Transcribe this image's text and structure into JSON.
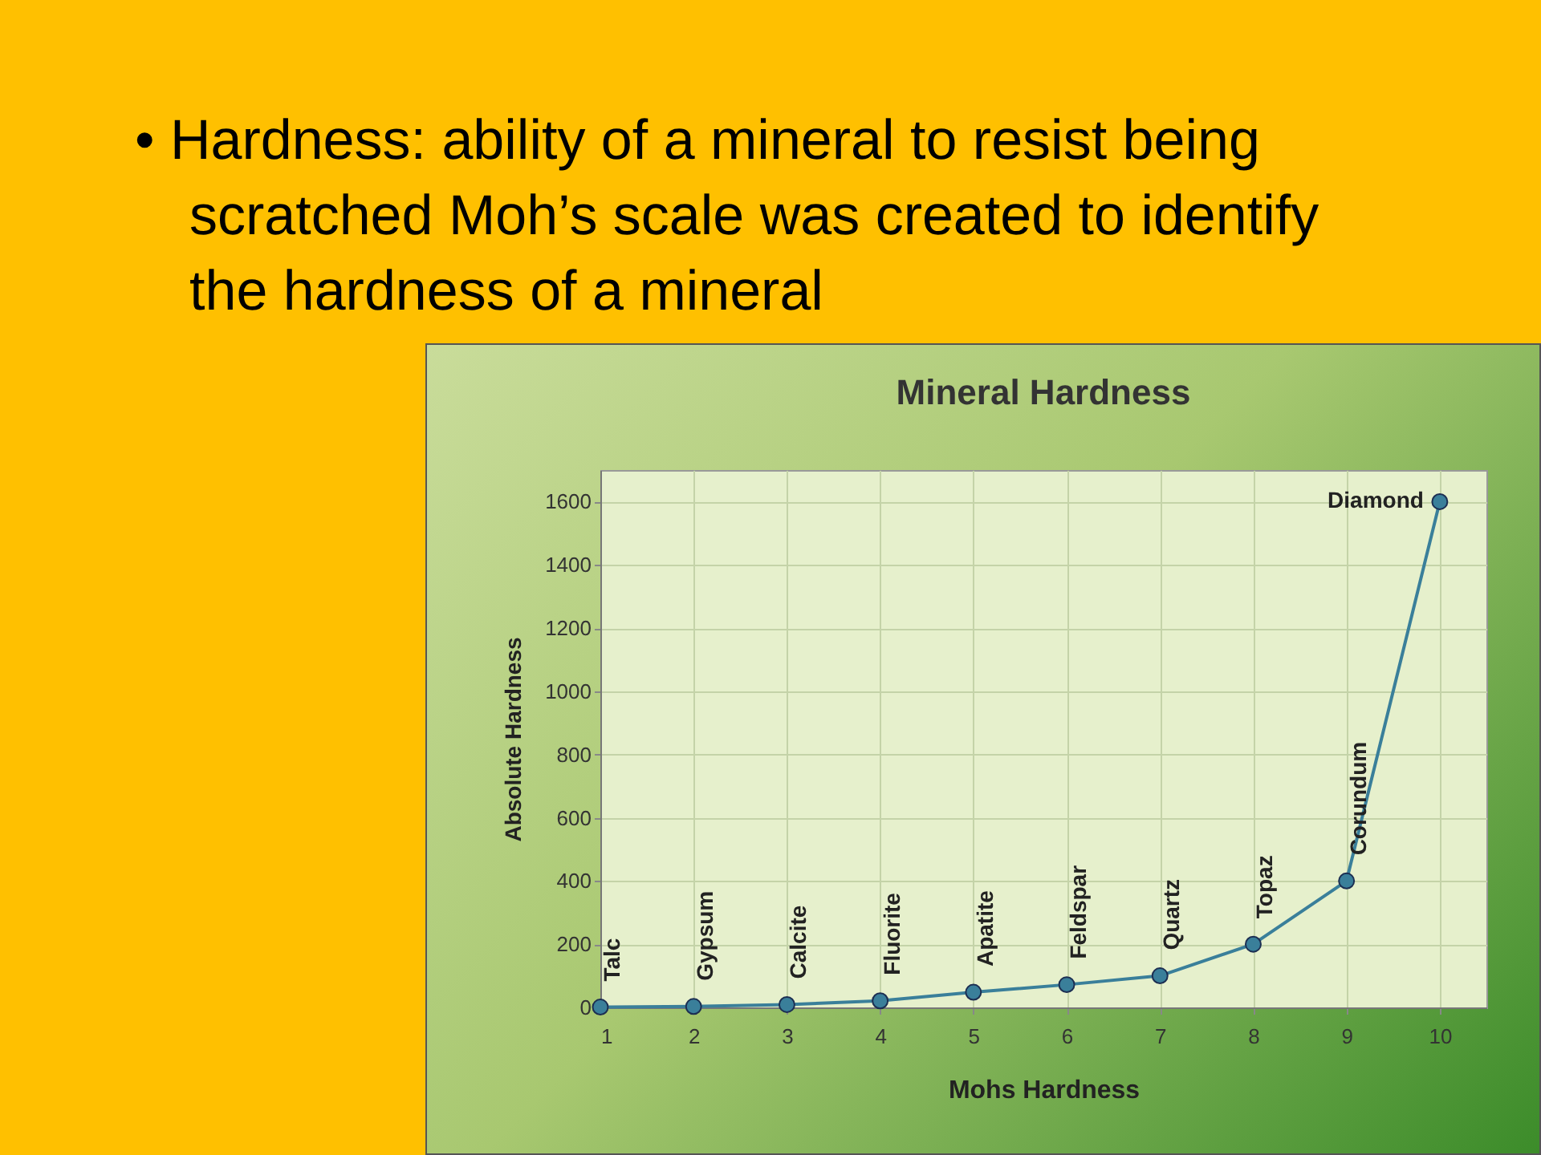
{
  "chart_data": {
    "type": "line",
    "title": "Mineral Hardness",
    "xlabel": "Mohs Hardness",
    "ylabel": "Absolute Hardness",
    "x": [
      1,
      2,
      3,
      4,
      5,
      6,
      7,
      8,
      9,
      10
    ],
    "series": [
      {
        "color": "#3a7f9a",
        "values": [
          1,
          3,
          9,
          21,
          48,
          72,
          100,
          200,
          400,
          1600
        ]
      }
    ],
    "xlim": [
      1,
      10.5
    ],
    "xticks": [
      1,
      2,
      3,
      4,
      5,
      6,
      7,
      8,
      9,
      10
    ],
    "ylim": [
      0,
      1700
    ],
    "yticks": [
      0,
      200,
      400,
      600,
      800,
      1000,
      1200,
      1400,
      1600
    ],
    "grid": true,
    "marker": "circle",
    "line_style": "solid",
    "legend": false,
    "annotations": [
      "• Hardness: ability of a mineral to resist being scratched Moh’s scale was created to identify the hardness of a mineral",
      {
        "text": "Talc",
        "x": 1,
        "y": 1
      },
      {
        "text": "Gypsum",
        "x": 2,
        "y": 3
      },
      {
        "text": "Calcite",
        "x": 3,
        "y": 9
      },
      {
        "text": "Fluorite",
        "x": 4,
        "y": 21
      },
      {
        "text": "Apatite",
        "x": 5,
        "y": 48
      },
      {
        "text": "Feldspar",
        "x": 6,
        "y": 72
      },
      {
        "text": "Quartz",
        "x": 7,
        "y": 100
      },
      {
        "text": "Topaz",
        "x": 8,
        "y": 200
      },
      {
        "text": "Corundum",
        "x": 9,
        "y": 400
      },
      {
        "text": "Diamond",
        "x": 10,
        "y": 1600
      }
    ]
  }
}
